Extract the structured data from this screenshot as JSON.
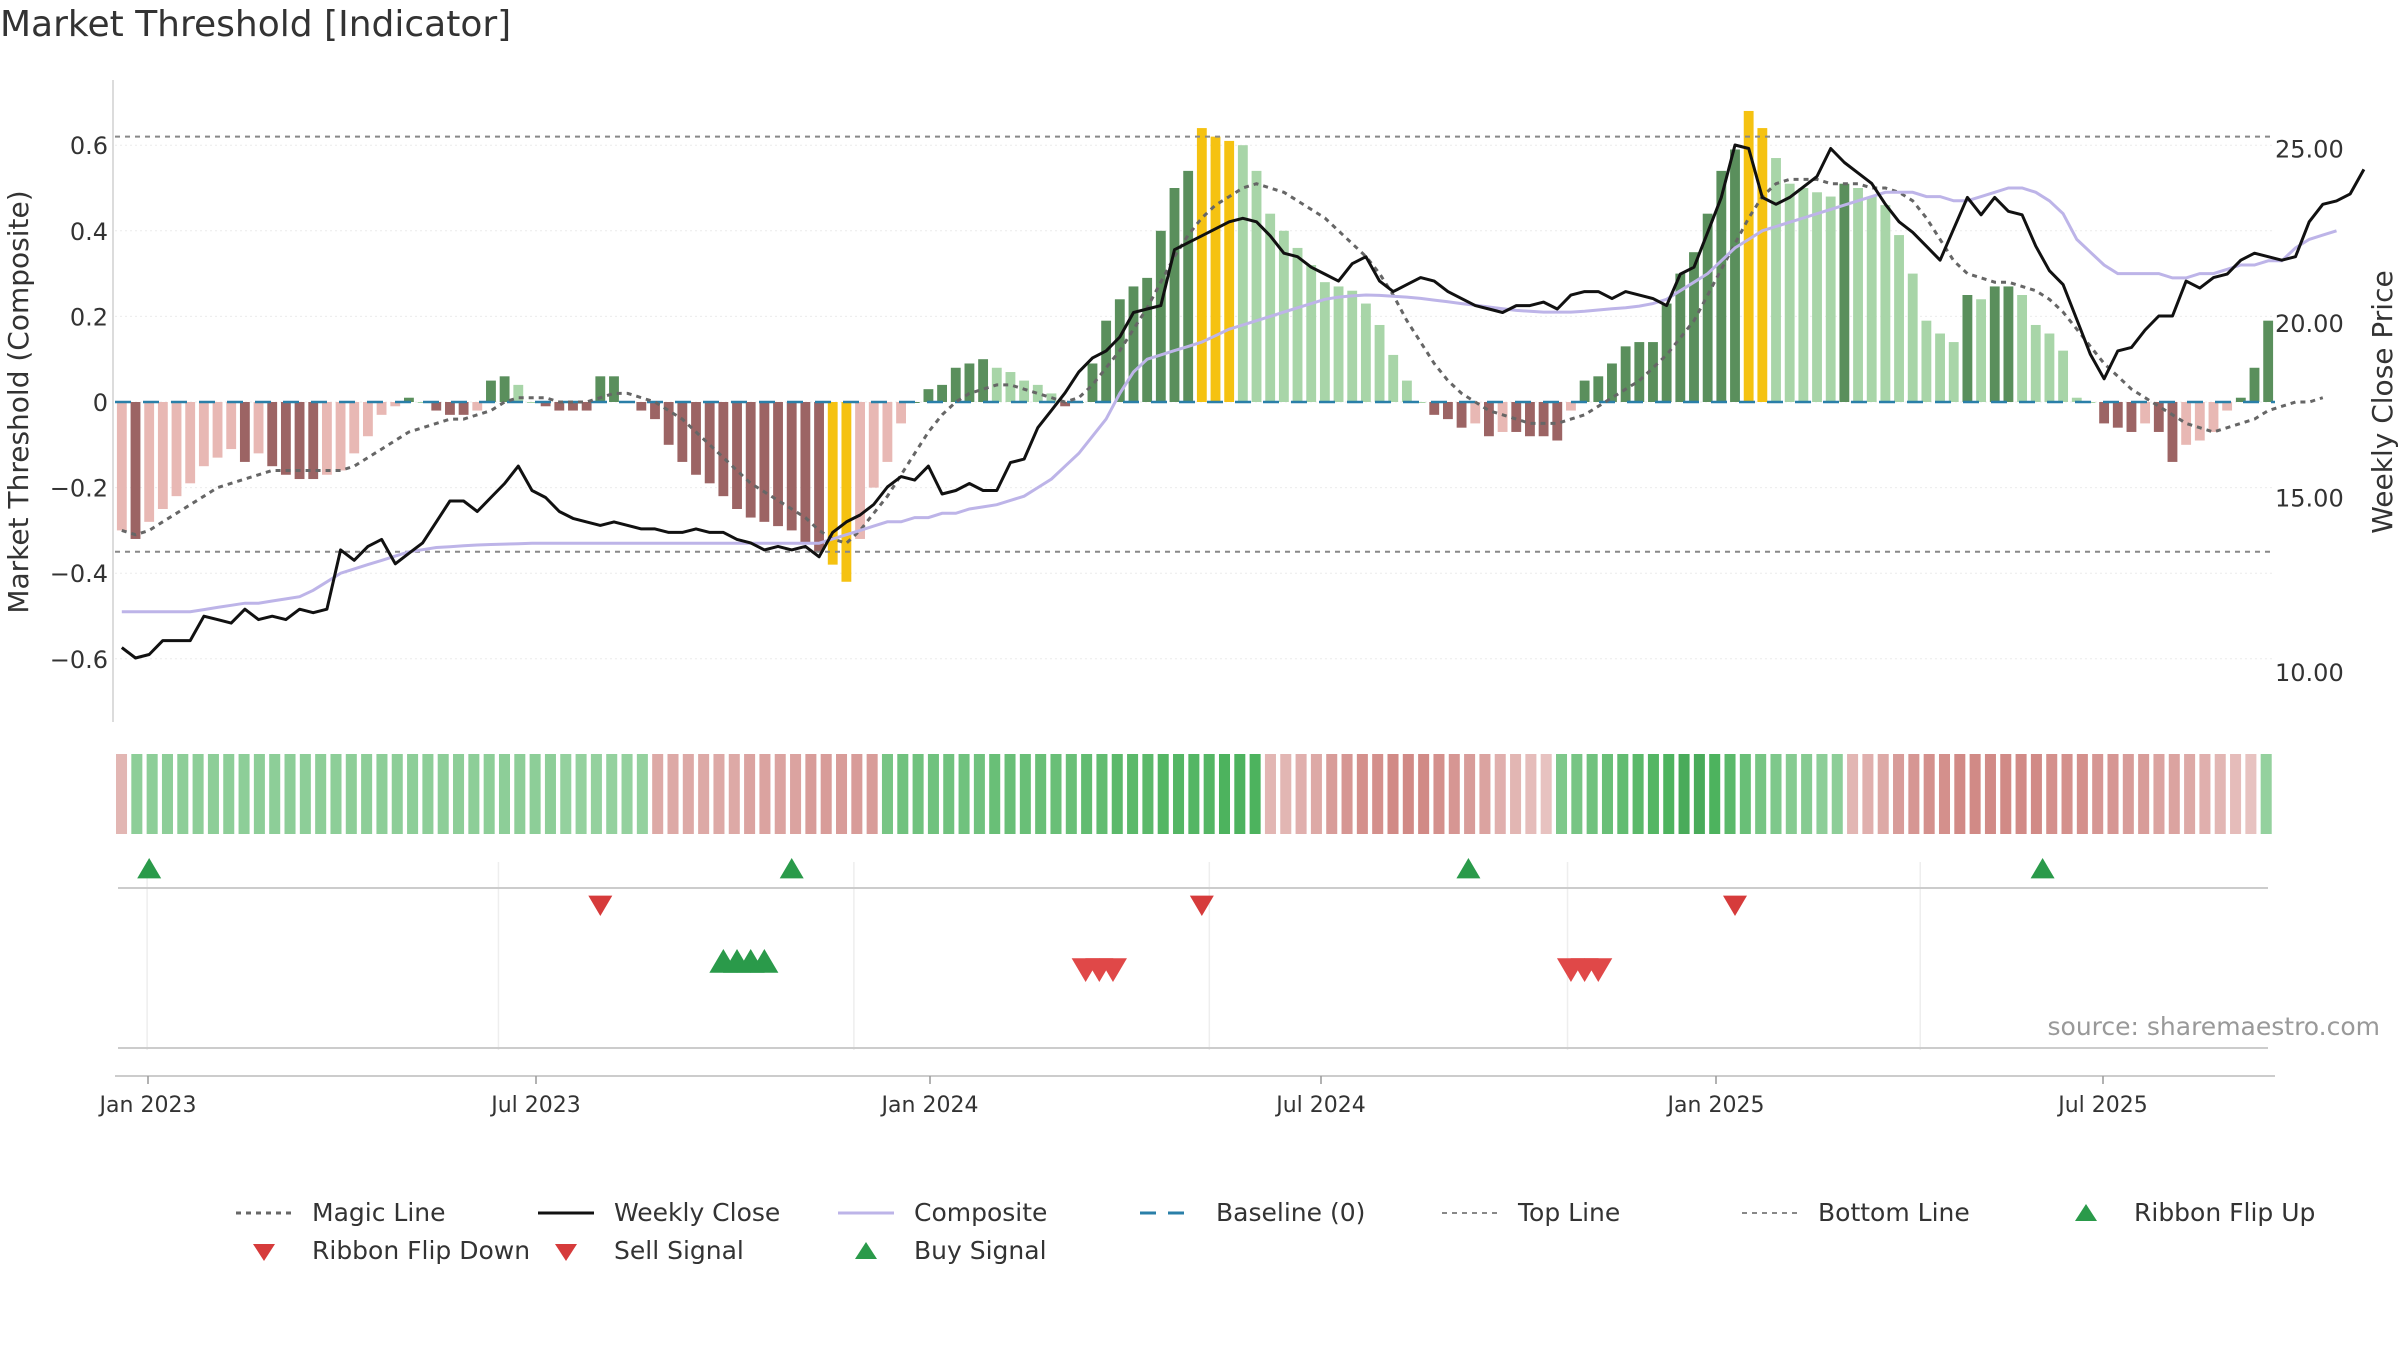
{
  "title": "Market Threshold [Indicator]",
  "source": "source: sharemaestro.com",
  "colors": {
    "weekly_close": "#111111",
    "composite": "#bdb4e8",
    "magic_line": "#666666",
    "baseline": "#2a7fa8",
    "threshold_line": "#888888",
    "extreme_bar": "#f5c211",
    "pos_strong": "#5a8f5c",
    "pos_light": "#a8d5a8",
    "neg_strong": "#9c6464",
    "neg_light": "#e8b8b4",
    "buy": "#2a9a4a",
    "sell": "#d63b3b"
  },
  "chart_data": {
    "type": "bar",
    "x_tick_labels": [
      "Jan 2023",
      "Jul 2023",
      "Jan 2024",
      "Jul 2024",
      "Jan 2025",
      "Jul 2025"
    ],
    "ylabel_left": "Market Threshold (Composite)",
    "ylabel_right": "Weekly Close Price",
    "y_left_ticks": [
      "0.6",
      "0.4",
      "0.2",
      "0",
      "−0.2",
      "−0.4",
      "−0.6"
    ],
    "y_right_ticks": [
      "25.00",
      "20.00",
      "15.00",
      "10.00"
    ],
    "ylim_left": [
      -0.75,
      0.75
    ],
    "ylim_right": [
      7.5,
      26.5
    ],
    "top_line": 0.62,
    "bottom_line": -0.35,
    "baseline": 0,
    "grid": true,
    "composite_bars": [
      -0.3,
      -0.32,
      -0.28,
      -0.25,
      -0.22,
      -0.19,
      -0.15,
      -0.13,
      -0.11,
      -0.14,
      -0.12,
      -0.15,
      -0.17,
      -0.18,
      -0.18,
      -0.17,
      -0.16,
      -0.12,
      -0.08,
      -0.03,
      -0.01,
      0.01,
      0.0,
      -0.02,
      -0.03,
      -0.03,
      -0.02,
      0.05,
      0.06,
      0.04,
      0.0,
      -0.01,
      -0.02,
      -0.02,
      -0.02,
      0.06,
      0.06,
      0.0,
      -0.02,
      -0.04,
      -0.1,
      -0.14,
      -0.17,
      -0.19,
      -0.22,
      -0.25,
      -0.27,
      -0.28,
      -0.29,
      -0.3,
      -0.33,
      -0.35,
      -0.38,
      -0.42,
      -0.32,
      -0.2,
      -0.14,
      -0.05,
      0.0,
      0.03,
      0.04,
      0.08,
      0.09,
      0.1,
      0.08,
      0.07,
      0.05,
      0.04,
      0.02,
      -0.01,
      0.0,
      0.09,
      0.19,
      0.24,
      0.27,
      0.29,
      0.4,
      0.5,
      0.54,
      0.64,
      0.62,
      0.61,
      0.6,
      0.54,
      0.44,
      0.4,
      0.36,
      0.32,
      0.28,
      0.27,
      0.26,
      0.23,
      0.18,
      0.11,
      0.05,
      0.0,
      -0.03,
      -0.04,
      -0.06,
      -0.05,
      -0.08,
      -0.07,
      -0.07,
      -0.08,
      -0.08,
      -0.09,
      -0.02,
      0.05,
      0.06,
      0.09,
      0.13,
      0.14,
      0.14,
      0.23,
      0.3,
      0.35,
      0.44,
      0.54,
      0.59,
      0.68,
      0.64,
      0.57,
      0.51,
      0.5,
      0.49,
      0.48,
      0.51,
      0.5,
      0.48,
      0.46,
      0.39,
      0.3,
      0.19,
      0.16,
      0.14,
      0.25,
      0.24,
      0.27,
      0.27,
      0.25,
      0.18,
      0.16,
      0.12,
      0.01,
      0.0,
      -0.05,
      -0.06,
      -0.07,
      -0.05,
      -0.07,
      -0.14,
      -0.1,
      -0.09,
      -0.07,
      -0.02,
      0.01,
      0.08,
      0.19
    ],
    "weekly_close": [
      10.7,
      10.4,
      10.5,
      10.9,
      10.9,
      10.9,
      11.6,
      11.5,
      11.4,
      11.8,
      11.5,
      11.6,
      11.5,
      11.8,
      11.7,
      11.8,
      13.5,
      13.2,
      13.6,
      13.8,
      13.1,
      13.4,
      13.7,
      14.3,
      14.9,
      14.9,
      14.6,
      15.0,
      15.4,
      15.9,
      15.2,
      15.0,
      14.6,
      14.4,
      14.3,
      14.2,
      14.3,
      14.2,
      14.1,
      14.1,
      14.0,
      14.0,
      14.1,
      14.0,
      14.0,
      13.8,
      13.7,
      13.5,
      13.6,
      13.5,
      13.6,
      13.3,
      14.0,
      14.3,
      14.5,
      14.8,
      15.3,
      15.6,
      15.5,
      15.9,
      15.1,
      15.2,
      15.4,
      15.2,
      15.2,
      16.0,
      16.1,
      17.0,
      17.5,
      18.0,
      18.6,
      19.0,
      19.2,
      19.6,
      20.3,
      20.4,
      20.5,
      22.1,
      22.3,
      22.5,
      22.7,
      22.9,
      23.0,
      22.9,
      22.5,
      22.0,
      21.9,
      21.6,
      21.4,
      21.2,
      21.7,
      21.9,
      21.2,
      20.9,
      21.1,
      21.3,
      21.2,
      20.9,
      20.7,
      20.5,
      20.4,
      20.3,
      20.5,
      20.5,
      20.6,
      20.4,
      20.8,
      20.9,
      20.9,
      20.7,
      20.9,
      20.8,
      20.7,
      20.5,
      21.4,
      21.6,
      22.6,
      23.6,
      25.1,
      25.0,
      23.6,
      23.4,
      23.6,
      23.9,
      24.2,
      25.0,
      24.6,
      24.3,
      24.0,
      23.4,
      22.9,
      22.6,
      22.2,
      21.8,
      22.7,
      23.6,
      23.1,
      23.6,
      23.2,
      23.1,
      22.2,
      21.5,
      21.1,
      20.1,
      19.1,
      18.4,
      19.2,
      19.3,
      19.8,
      20.2,
      20.2,
      21.2,
      21.0,
      21.3,
      21.4,
      21.8,
      22.0,
      21.9,
      21.8,
      21.9,
      22.9,
      23.4,
      23.5,
      23.7,
      24.4
    ],
    "composite_line": [
      -0.49,
      -0.49,
      -0.49,
      -0.49,
      -0.49,
      -0.49,
      -0.485,
      -0.48,
      -0.475,
      -0.47,
      -0.47,
      -0.465,
      -0.46,
      -0.455,
      -0.44,
      -0.42,
      -0.4,
      -0.39,
      -0.38,
      -0.37,
      -0.36,
      -0.35,
      -0.345,
      -0.34,
      -0.338,
      -0.336,
      -0.334,
      -0.333,
      -0.332,
      -0.331,
      -0.33,
      -0.33,
      -0.33,
      -0.33,
      -0.33,
      -0.33,
      -0.33,
      -0.33,
      -0.33,
      -0.33,
      -0.33,
      -0.33,
      -0.33,
      -0.33,
      -0.33,
      -0.33,
      -0.33,
      -0.33,
      -0.33,
      -0.33,
      -0.33,
      -0.33,
      -0.32,
      -0.31,
      -0.3,
      -0.29,
      -0.28,
      -0.28,
      -0.27,
      -0.27,
      -0.26,
      -0.26,
      -0.25,
      -0.245,
      -0.24,
      -0.23,
      -0.22,
      -0.2,
      -0.18,
      -0.15,
      -0.12,
      -0.08,
      -0.04,
      0.02,
      0.07,
      0.1,
      0.11,
      0.12,
      0.13,
      0.14,
      0.155,
      0.17,
      0.18,
      0.19,
      0.2,
      0.21,
      0.22,
      0.23,
      0.24,
      0.245,
      0.248,
      0.25,
      0.249,
      0.247,
      0.245,
      0.242,
      0.238,
      0.234,
      0.23,
      0.226,
      0.222,
      0.218,
      0.214,
      0.212,
      0.21,
      0.21,
      0.21,
      0.212,
      0.215,
      0.218,
      0.22,
      0.224,
      0.23,
      0.24,
      0.26,
      0.28,
      0.3,
      0.33,
      0.36,
      0.38,
      0.4,
      0.41,
      0.42,
      0.43,
      0.44,
      0.45,
      0.46,
      0.47,
      0.48,
      0.49,
      0.49,
      0.49,
      0.48,
      0.48,
      0.47,
      0.47,
      0.48,
      0.49,
      0.5,
      0.5,
      0.49,
      0.47,
      0.44,
      0.38,
      0.35,
      0.32,
      0.3,
      0.3,
      0.3,
      0.3,
      0.29,
      0.29,
      0.3,
      0.3,
      0.31,
      0.32,
      0.32,
      0.33,
      0.33,
      0.36,
      0.38,
      0.39,
      0.4
    ],
    "magic_line": [
      -0.3,
      -0.31,
      -0.3,
      -0.28,
      -0.26,
      -0.24,
      -0.22,
      -0.2,
      -0.19,
      -0.18,
      -0.17,
      -0.16,
      -0.16,
      -0.16,
      -0.16,
      -0.16,
      -0.16,
      -0.15,
      -0.13,
      -0.11,
      -0.09,
      -0.07,
      -0.06,
      -0.05,
      -0.04,
      -0.04,
      -0.03,
      -0.02,
      0.0,
      0.01,
      0.01,
      0.01,
      0.0,
      0.0,
      0.0,
      0.01,
      0.02,
      0.02,
      0.01,
      0.0,
      -0.02,
      -0.04,
      -0.07,
      -0.1,
      -0.13,
      -0.16,
      -0.19,
      -0.21,
      -0.23,
      -0.25,
      -0.27,
      -0.3,
      -0.32,
      -0.33,
      -0.3,
      -0.26,
      -0.22,
      -0.17,
      -0.12,
      -0.07,
      -0.03,
      0.0,
      0.02,
      0.03,
      0.04,
      0.04,
      0.03,
      0.02,
      0.01,
      0.0,
      0.01,
      0.04,
      0.08,
      0.12,
      0.17,
      0.22,
      0.28,
      0.34,
      0.39,
      0.43,
      0.46,
      0.48,
      0.5,
      0.51,
      0.5,
      0.49,
      0.47,
      0.45,
      0.43,
      0.4,
      0.37,
      0.34,
      0.3,
      0.25,
      0.19,
      0.14,
      0.09,
      0.05,
      0.02,
      0.0,
      -0.02,
      -0.03,
      -0.04,
      -0.05,
      -0.05,
      -0.05,
      -0.04,
      -0.03,
      -0.01,
      0.01,
      0.03,
      0.05,
      0.08,
      0.11,
      0.15,
      0.19,
      0.25,
      0.31,
      0.37,
      0.43,
      0.48,
      0.51,
      0.52,
      0.52,
      0.52,
      0.51,
      0.51,
      0.51,
      0.5,
      0.5,
      0.49,
      0.47,
      0.43,
      0.38,
      0.33,
      0.3,
      0.29,
      0.28,
      0.28,
      0.27,
      0.26,
      0.24,
      0.21,
      0.17,
      0.13,
      0.09,
      0.06,
      0.03,
      0.01,
      -0.01,
      -0.03,
      -0.05,
      -0.06,
      -0.07,
      -0.06,
      -0.05,
      -0.04,
      -0.02,
      -0.01,
      0.0,
      0.0,
      0.01
    ],
    "ribbon_strength": [
      -0.3,
      0.35,
      0.35,
      0.35,
      0.35,
      0.35,
      0.35,
      0.35,
      0.35,
      0.35,
      0.35,
      0.35,
      0.35,
      0.35,
      0.35,
      0.35,
      0.35,
      0.35,
      0.35,
      0.35,
      0.35,
      0.35,
      0.35,
      0.35,
      0.35,
      0.35,
      0.35,
      0.35,
      0.35,
      0.3,
      0.3,
      0.3,
      0.3,
      0.3,
      0.3,
      -0.4,
      -0.4,
      -0.4,
      -0.4,
      -0.4,
      -0.4,
      -0.45,
      -0.45,
      -0.45,
      -0.45,
      -0.5,
      -0.5,
      -0.5,
      -0.5,
      -0.5,
      0.5,
      0.55,
      0.55,
      0.55,
      0.55,
      0.55,
      0.55,
      0.6,
      0.6,
      0.6,
      0.6,
      0.6,
      0.6,
      0.65,
      0.65,
      0.7,
      0.7,
      0.7,
      0.75,
      0.75,
      0.75,
      0.75,
      0.8,
      0.8,
      0.8,
      -0.3,
      -0.3,
      -0.35,
      -0.4,
      -0.5,
      -0.55,
      -0.6,
      -0.6,
      -0.65,
      -0.65,
      -0.65,
      -0.6,
      -0.55,
      -0.5,
      -0.45,
      -0.35,
      -0.3,
      -0.25,
      -0.2,
      0.45,
      0.5,
      0.55,
      0.6,
      0.65,
      0.7,
      0.75,
      0.8,
      0.85,
      0.85,
      0.8,
      0.7,
      0.6,
      0.5,
      0.45,
      0.4,
      0.4,
      0.35,
      0.35,
      -0.3,
      -0.35,
      -0.4,
      -0.5,
      -0.55,
      -0.6,
      -0.6,
      -0.65,
      -0.65,
      -0.65,
      -0.65,
      -0.65,
      -0.65,
      -0.6,
      -0.6,
      -0.6,
      -0.55,
      -0.55,
      -0.5,
      -0.5,
      -0.45,
      -0.45,
      -0.4,
      -0.35,
      -0.3,
      -0.25,
      -0.2,
      0.3
    ],
    "ribbon_flip_up": [
      2.0,
      49.0,
      98.5,
      140.5
    ],
    "ribbon_flip_down": [
      35.0,
      79.0,
      118.0
    ],
    "buy_signal": [
      44.0,
      45.0,
      46.0,
      47.0
    ],
    "sell_signal": [
      70.5,
      71.5,
      72.5,
      106.0,
      107.0,
      108.0
    ]
  },
  "legend": [
    {
      "label": "Magic Line",
      "symbol": "dotted-line"
    },
    {
      "label": "Weekly Close",
      "symbol": "solid-line"
    },
    {
      "label": "Composite",
      "symbol": "lavender-line"
    },
    {
      "label": "Baseline (0)",
      "symbol": "dashed-line"
    },
    {
      "label": "Top Line",
      "symbol": "grey-dotted-line"
    },
    {
      "label": "Bottom Line",
      "symbol": "grey-dotted-line"
    },
    {
      "label": "Ribbon Flip Up",
      "symbol": "triangle-up-green"
    },
    {
      "label": "Ribbon Flip Down",
      "symbol": "triangle-down-red"
    },
    {
      "label": "Sell Signal",
      "symbol": "triangle-down-red"
    },
    {
      "label": "Buy Signal",
      "symbol": "triangle-up-green"
    }
  ]
}
